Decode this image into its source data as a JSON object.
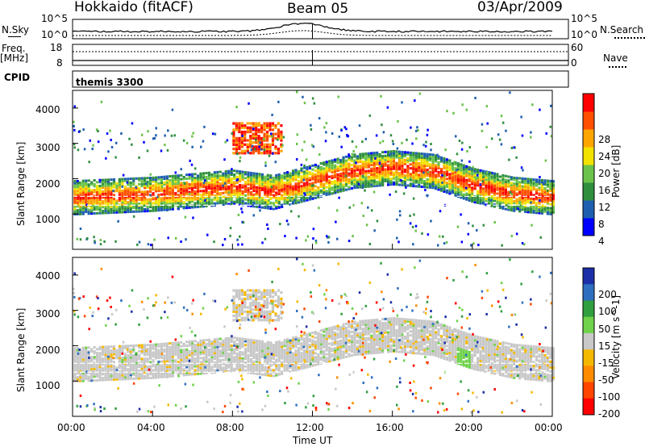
{
  "header": {
    "station": "Hokkaido (fitACF)",
    "beam": "Beam 05",
    "date": "03/Apr/2009"
  },
  "left_labels": {
    "nsky": "N.Sky",
    "freq": "Freq.",
    "freq_unit": "[MHz]",
    "cpid": "CPID"
  },
  "right_labels": {
    "nsearch": "N.Search",
    "nave": "Nave"
  },
  "noise_panel": {
    "left_ticks": [
      "10^5",
      "10^0"
    ],
    "right_ticks": [
      "10^5",
      "10^0"
    ]
  },
  "freq_panel": {
    "left_ticks": [
      "18",
      "8"
    ],
    "right_ticks": [
      "60",
      "0"
    ]
  },
  "cpid_text": "themis 3300",
  "power_panel": {
    "ylabel": "Slant Range [km]",
    "yticks": [
      "4000",
      "3000",
      "2000",
      "1000"
    ],
    "colorbar_label": "Power [dB]",
    "colorbar_ticks": [
      "28",
      "24",
      "20",
      "16",
      "12",
      "8",
      "4"
    ],
    "colors": [
      "#0000ff",
      "#1f5fb0",
      "#2f8f3f",
      "#6ac24a",
      "#f2e200",
      "#ffa500",
      "#ff5000",
      "#ff0000"
    ]
  },
  "velocity_panel": {
    "ylabel": "Slant Range [km]",
    "yticks": [
      "4000",
      "3000",
      "2000",
      "1000"
    ],
    "colorbar_label": "Velocity [m s^-1]",
    "colorbar_ticks": [
      "200",
      "100",
      "50",
      "15",
      "-15",
      "-50",
      "-100",
      "-200"
    ],
    "colors": [
      "#1c2fa8",
      "#2f6fbf",
      "#2f9f3f",
      "#6fd24a",
      "#c8c8c8",
      "#f5b800",
      "#ff8c00",
      "#ff4500",
      "#ff0000"
    ]
  },
  "xaxis": {
    "ticks": [
      "00:00",
      "04:00",
      "08:00",
      "12:00",
      "16:00",
      "20:00",
      "00:00"
    ],
    "label": "Time UT"
  },
  "chart_data": {
    "type": "heatmap",
    "title": "Hokkaido (fitACF) Beam 05 03/Apr/2009",
    "xlabel": "Time UT",
    "ylabel": "Slant Range [km]",
    "xlim": [
      0,
      24
    ],
    "ylim": [
      0,
      4500
    ],
    "scatter_bands": [
      {
        "name": "main",
        "t_start": 0,
        "t_end": 24,
        "center_km": [
          1450,
          1500,
          1550,
          1650,
          1750,
          1600,
          1900,
          2200,
          2300,
          2200,
          1800,
          1550,
          1450
        ],
        "times_h": [
          0,
          2,
          4,
          6,
          8,
          10,
          12,
          14,
          16,
          18,
          20,
          22,
          24
        ]
      },
      {
        "name": "upper",
        "t_start": 8,
        "t_end": 10.5,
        "range_km": [
          2700,
          3600
        ],
        "power_db": 26
      }
    ],
    "power_colorbar": {
      "label": "Power [dB]",
      "min": 0,
      "max": 30,
      "ticks": [
        4,
        8,
        12,
        16,
        20,
        24,
        28
      ]
    },
    "velocity_colorbar": {
      "label": "Velocity [m s^-1]",
      "ticks": [
        200,
        100,
        50,
        15,
        -15,
        -50,
        -100,
        -200
      ]
    }
  }
}
